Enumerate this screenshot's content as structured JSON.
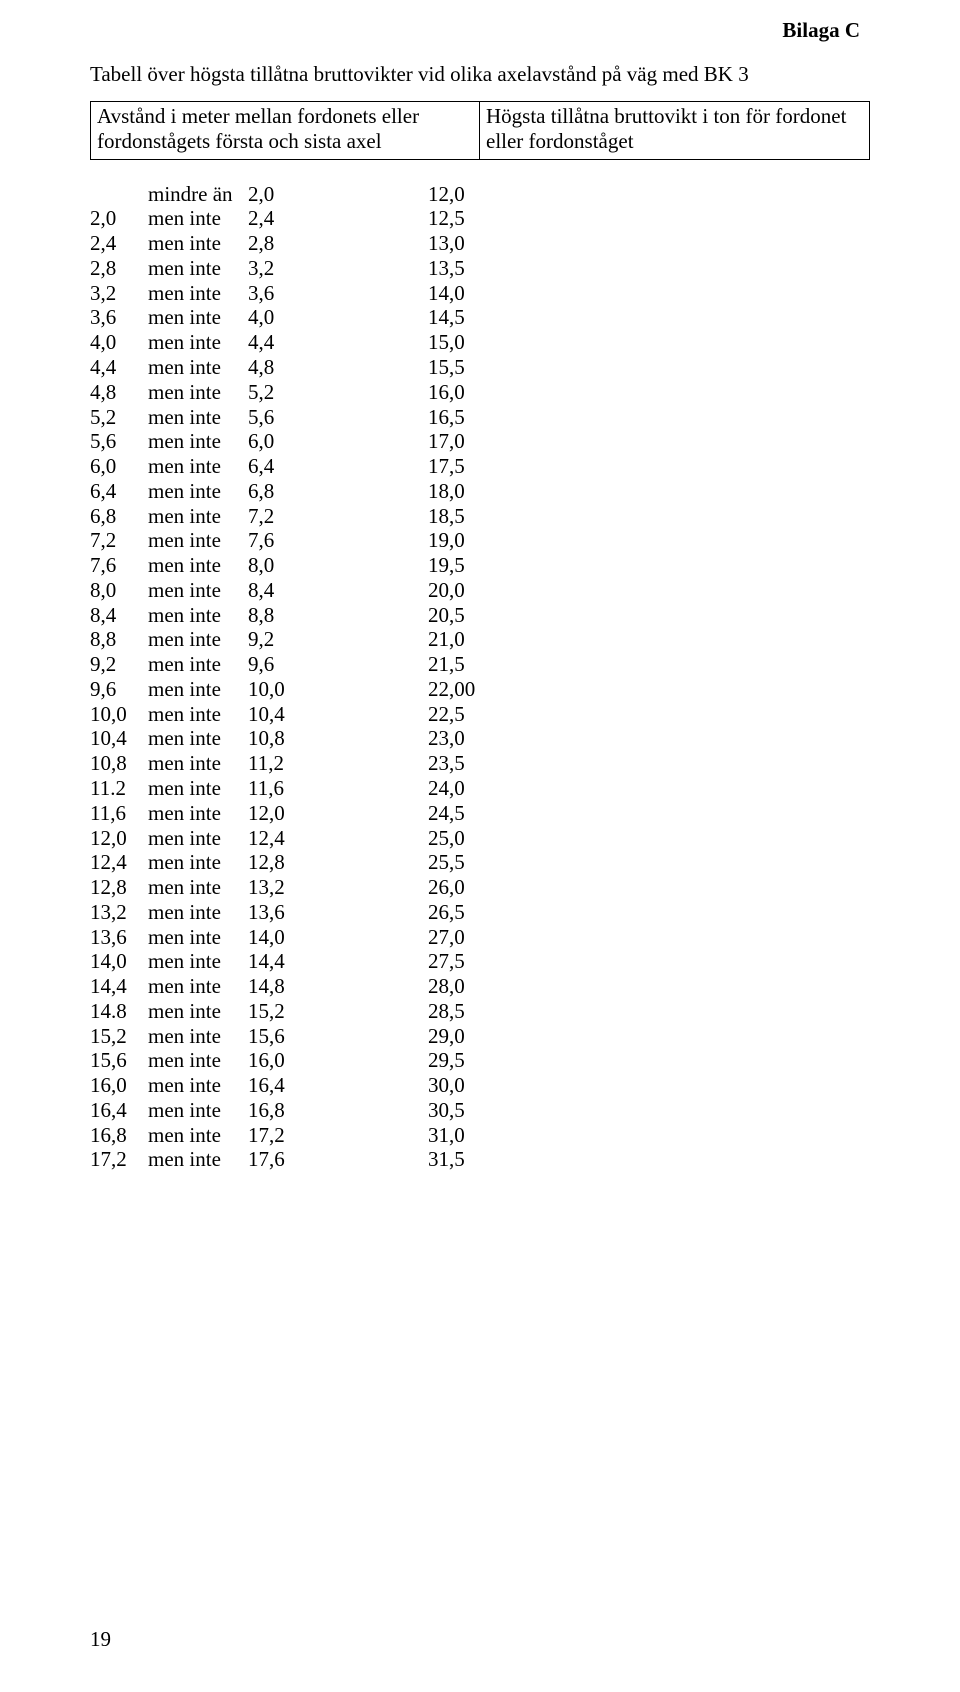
{
  "appendix_label": "Bilaga C",
  "title": "Tabell över högsta tillåtna bruttovikter vid olika axelavstånd på väg med BK 3",
  "header_left": "Avstånd i meter mellan fordonets eller fordonstågets första och sista axel",
  "header_right": "Högsta tillåtna bruttovikt i ton för fordonet eller fordonståget",
  "first_row_label": "mindre än",
  "between_label": "men inte",
  "page_number": "19",
  "rows": [
    {
      "low": "",
      "high": "2,0",
      "val": "12,0"
    },
    {
      "low": "2,0",
      "high": "2,4",
      "val": "12,5"
    },
    {
      "low": "2,4",
      "high": "2,8",
      "val": "13,0"
    },
    {
      "low": "2,8",
      "high": "3,2",
      "val": "13,5"
    },
    {
      "low": "3,2",
      "high": "3,6",
      "val": "14,0"
    },
    {
      "low": "3,6",
      "high": "4,0",
      "val": "14,5"
    },
    {
      "low": "4,0",
      "high": "4,4",
      "val": "15,0"
    },
    {
      "low": "4,4",
      "high": "4,8",
      "val": "15,5"
    },
    {
      "low": "4,8",
      "high": "5,2",
      "val": "16,0"
    },
    {
      "low": "5,2",
      "high": "5,6",
      "val": "16,5"
    },
    {
      "low": "5,6",
      "high": "6,0",
      "val": "17,0"
    },
    {
      "low": "6,0",
      "high": "6,4",
      "val": "17,5"
    },
    {
      "low": "6,4",
      "high": "6,8",
      "val": "18,0"
    },
    {
      "low": "6,8",
      "high": "7,2",
      "val": "18,5"
    },
    {
      "low": "7,2",
      "high": "7,6",
      "val": "19,0"
    },
    {
      "low": "7,6",
      "high": "8,0",
      "val": "19,5"
    },
    {
      "low": "8,0",
      "high": "8,4",
      "val": "20,0"
    },
    {
      "low": "8,4",
      "high": "8,8",
      "val": "20,5"
    },
    {
      "low": "8,8",
      "high": "9,2",
      "val": "21,0"
    },
    {
      "low": "9,2",
      "high": "9,6",
      "val": "21,5"
    },
    {
      "low": "9,6",
      "high": "10,0",
      "val": "22,00"
    },
    {
      "low": "10,0",
      "high": "10,4",
      "val": "22,5"
    },
    {
      "low": "10,4",
      "high": "10,8",
      "val": "23,0"
    },
    {
      "low": "10,8",
      "high": "11,2",
      "val": "23,5"
    },
    {
      "low": "11.2",
      "high": "11,6",
      "val": "24,0"
    },
    {
      "low": "11,6",
      "high": "12,0",
      "val": "24,5"
    },
    {
      "low": "12,0",
      "high": "12,4",
      "val": "25,0"
    },
    {
      "low": "12,4",
      "high": "12,8",
      "val": "25,5"
    },
    {
      "low": "12,8",
      "high": "13,2",
      "val": "26,0"
    },
    {
      "low": "13,2",
      "high": "13,6",
      "val": "26,5"
    },
    {
      "low": "13,6",
      "high": "14,0",
      "val": "27,0"
    },
    {
      "low": "14,0",
      "high": "14,4",
      "val": "27,5"
    },
    {
      "low": "14,4",
      "high": "14,8",
      "val": "28,0"
    },
    {
      "low": "14.8",
      "high": "15,2",
      "val": "28,5"
    },
    {
      "low": "15,2",
      "high": "15,6",
      "val": "29,0"
    },
    {
      "low": "15,6",
      "high": "16,0",
      "val": "29,5"
    },
    {
      "low": "16,0",
      "high": "16,4",
      "val": "30,0"
    },
    {
      "low": "16,4",
      "high": "16,8",
      "val": "30,5"
    },
    {
      "low": "16,8",
      "high": "17,2",
      "val": "31,0"
    },
    {
      "low": "17,2",
      "high": "17,6",
      "val": "31,5"
    }
  ]
}
